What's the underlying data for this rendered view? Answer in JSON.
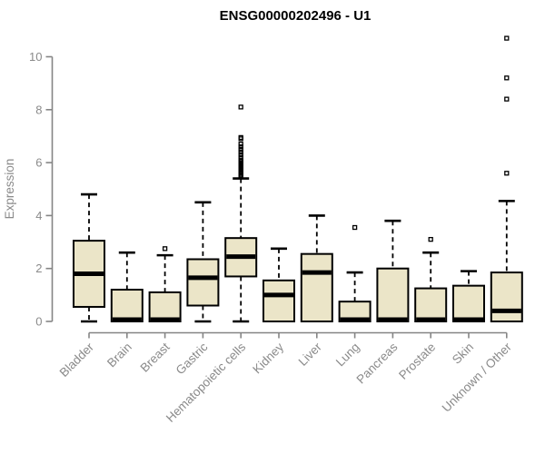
{
  "page": {
    "background": "#ffffff"
  },
  "chart_data": {
    "type": "box",
    "title": "ENSG00000202496 - U1",
    "ylabel": "Expression",
    "xlabel": "",
    "ylim": [
      0,
      10
    ],
    "yticks": [
      0,
      2,
      4,
      6,
      8,
      10
    ],
    "grid": false,
    "legend": "none",
    "box_fill": "#EBE5C8",
    "box_stroke": "#000000",
    "axis_color": "#858585",
    "label_color": "#8a8a8a",
    "title_color": "#000000",
    "categories": [
      "Bladder",
      "Brain",
      "Breast",
      "Gastric",
      "Hematopoietic cells",
      "Kidney",
      "Liver",
      "Lung",
      "Pancreas",
      "Prostate",
      "Skin",
      "Unknown / Other"
    ],
    "series": [
      {
        "label": "Bladder",
        "whisker_low": 0,
        "q1": 0.55,
        "median": 1.8,
        "q3": 3.05,
        "whisker_high": 4.8,
        "outliers": []
      },
      {
        "label": "Brain",
        "whisker_low": 0,
        "q1": 0,
        "median": 0.07,
        "q3": 1.2,
        "whisker_high": 2.6,
        "outliers": []
      },
      {
        "label": "Breast",
        "whisker_low": 0,
        "q1": 0,
        "median": 0.07,
        "q3": 1.1,
        "whisker_high": 2.5,
        "outliers": [
          2.75
        ]
      },
      {
        "label": "Gastric",
        "whisker_low": 0,
        "q1": 0.6,
        "median": 1.65,
        "q3": 2.35,
        "whisker_high": 4.5,
        "outliers": []
      },
      {
        "label": "Hematopoietic cells",
        "whisker_low": 0,
        "q1": 1.7,
        "median": 2.45,
        "q3": 3.15,
        "whisker_high": 5.4,
        "outliers": [
          5.5,
          5.55,
          5.6,
          5.65,
          5.7,
          5.75,
          5.8,
          5.85,
          5.9,
          5.95,
          6.0,
          6.05,
          6.1,
          6.2,
          6.3,
          6.4,
          6.5,
          6.6,
          6.7,
          6.9,
          6.95,
          8.1
        ]
      },
      {
        "label": "Kidney",
        "whisker_low": 0,
        "q1": 0,
        "median": 1.0,
        "q3": 1.55,
        "whisker_high": 2.75,
        "outliers": []
      },
      {
        "label": "Liver",
        "whisker_low": 0,
        "q1": 0,
        "median": 1.85,
        "q3": 2.55,
        "whisker_high": 4.0,
        "outliers": []
      },
      {
        "label": "Lung",
        "whisker_low": 0,
        "q1": 0,
        "median": 0.07,
        "q3": 0.75,
        "whisker_high": 1.85,
        "outliers": [
          3.55
        ]
      },
      {
        "label": "Pancreas",
        "whisker_low": 0,
        "q1": 0,
        "median": 0.07,
        "q3": 2.0,
        "whisker_high": 3.8,
        "outliers": []
      },
      {
        "label": "Prostate",
        "whisker_low": 0,
        "q1": 0,
        "median": 0.07,
        "q3": 1.25,
        "whisker_high": 2.6,
        "outliers": [
          3.1
        ]
      },
      {
        "label": "Skin",
        "whisker_low": 0,
        "q1": 0,
        "median": 0.07,
        "q3": 1.35,
        "whisker_high": 1.9,
        "outliers": []
      },
      {
        "label": "Unknown / Other",
        "whisker_low": 0,
        "q1": 0,
        "median": 0.4,
        "q3": 1.85,
        "whisker_high": 4.55,
        "outliers": [
          5.6,
          8.4,
          9.2,
          10.7
        ]
      }
    ]
  }
}
